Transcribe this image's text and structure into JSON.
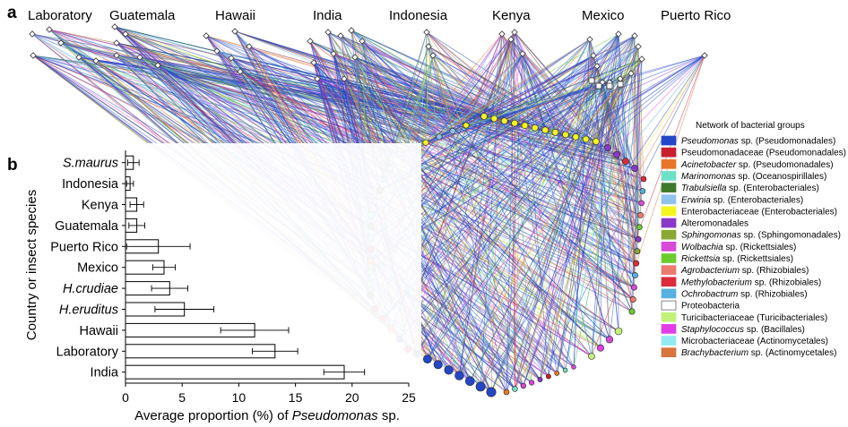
{
  "panel_a": {
    "letter": "a",
    "countries": [
      "Laboratory",
      "Guatemala",
      "Hawaii",
      "India",
      "Indonesia",
      "Kenya",
      "Mexico",
      "Puerto Rico"
    ]
  },
  "legend": {
    "title": "Network of bacterial groups",
    "items": [
      {
        "italic": "Pseudomonas",
        "rest": " sp. (Pseudomonadales)",
        "color": "#2347c8"
      },
      {
        "italic": "",
        "rest": "Pseudomonadaceae (Pseudomonadales)",
        "color": "#c8202e"
      },
      {
        "italic": "Acinetobacter",
        "rest": " sp. (Pseudomonadales)",
        "color": "#e8762a"
      },
      {
        "italic": "Marinomonas",
        "rest": " sp. (Oceanospirillales)",
        "color": "#6fe0c8"
      },
      {
        "italic": "Trabulsiella",
        "rest": " sp. (Enterobacteriales)",
        "color": "#3f7a2a"
      },
      {
        "italic": "Erwinia",
        "rest": " sp. (Enterobacteriales)",
        "color": "#8fc3ec"
      },
      {
        "italic": "",
        "rest": "Enterobacteriaceae (Enterobacteriales)",
        "color": "#f4f41e"
      },
      {
        "italic": "",
        "rest": "Alteromonadales",
        "color": "#8a38c8"
      },
      {
        "italic": "Sphingomonas",
        "rest": " sp. (Sphingomonadales)",
        "color": "#8aa832"
      },
      {
        "italic": "Wolbachia",
        "rest": " sp. (Rickettsiales)",
        "color": "#d84ad8"
      },
      {
        "italic": "Rickettsia",
        "rest": " sp. (Rickettsiales)",
        "color": "#6ccc2e"
      },
      {
        "italic": "Agrobacterium",
        "rest": " sp. (Rhizobiales)",
        "color": "#ec7a6e"
      },
      {
        "italic": "Methylobacterium",
        "rest": " sp. (Rhizobiales)",
        "color": "#dc2c3c"
      },
      {
        "italic": "Ochrobactrum",
        "rest": " sp. (Rhizobiales)",
        "color": "#56b0e0"
      },
      {
        "italic": "",
        "rest": "Proteobacteria",
        "color": "#ffffff"
      },
      {
        "italic": "",
        "rest": "Turicibacteriaceae (Turicibacteriales)",
        "color": "#c2f07a"
      },
      {
        "italic": "Staphylococcus",
        "rest": " sp. (Bacillales)",
        "color": "#e23ee8"
      },
      {
        "italic": "",
        "rest": "Microbacteriaceae (Actinomycetales)",
        "color": "#92eaf2"
      },
      {
        "italic": "Brachybacterium",
        "rest": " sp. (Actinomycetales)",
        "color": "#d8743e"
      }
    ]
  },
  "chart_data": {
    "type": "bar",
    "orientation": "horizontal",
    "panel_letter": "b",
    "title": "",
    "categories": [
      "S.maurus",
      "Indonesia",
      "Kenya",
      "Guatemala",
      "Puerto Rico",
      "Mexico",
      "H.crudiae",
      "H.eruditus",
      "Hawaii",
      "Laboratory",
      "India"
    ],
    "italic_categories": [
      "S.maurus",
      "H.crudiae",
      "H.eruditus"
    ],
    "values": [
      0.7,
      0.4,
      1.0,
      1.0,
      2.9,
      3.4,
      3.9,
      5.2,
      11.4,
      13.2,
      19.3
    ],
    "errors": [
      0.5,
      0.3,
      0.6,
      0.7,
      2.8,
      1.0,
      1.6,
      2.6,
      3.0,
      2.0,
      1.8
    ],
    "xlabel_prefix": "Average proportion (%) of ",
    "xlabel_italic": "Pseudomonas",
    "xlabel_suffix": " sp.",
    "ylabel": "Country or insect species",
    "xlim": [
      0,
      25
    ],
    "xticks": [
      0,
      5,
      10,
      15,
      20,
      25
    ],
    "grid": false
  }
}
